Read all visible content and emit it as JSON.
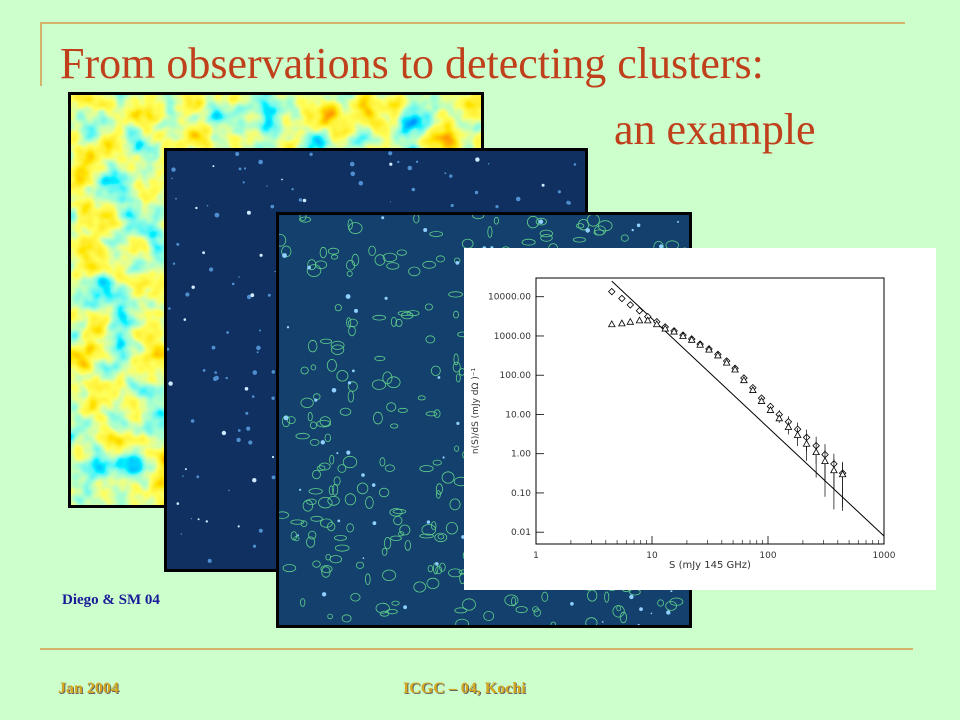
{
  "title": {
    "line1": "From observations to detecting clusters:",
    "line2": "an example"
  },
  "credit": "Diego & SM 04",
  "footer": {
    "date": "Jan 2004",
    "event": "ICGC – 04, Kochi"
  },
  "colors": {
    "background": "#ccffcc",
    "title": "#c0401b",
    "rule": "#d4b46a",
    "footer": "#d4a820",
    "credit": "#1a1a99"
  },
  "panels": [
    {
      "name": "sz-map",
      "colormap": "jet",
      "border": "#000000"
    },
    {
      "name": "filtered-map",
      "colormap": "blue",
      "border": "#000000"
    },
    {
      "name": "detected-sources-map",
      "colormap": "blue-with-green-contours",
      "border": "#000000"
    }
  ],
  "chart_data": {
    "type": "scatter",
    "xlabel": "S  (mJy 145 GHz)",
    "ylabel": "n(S)/dS  (mJy dΩ )⁻¹",
    "xscale": "log",
    "yscale": "log",
    "xlim": [
      1,
      1000
    ],
    "ylim": [
      0.005,
      30000
    ],
    "x_ticks": [
      "1",
      "10",
      "100",
      "1000"
    ],
    "x_tick_values": [
      1,
      10,
      100,
      1000
    ],
    "y_ticks": [
      "10000.00",
      "1000.00",
      "100.00",
      "10.00",
      "1.00",
      "0.10",
      "0.01"
    ],
    "y_tick_values": [
      10000,
      1000,
      100,
      10,
      1,
      0.1,
      0.01
    ],
    "series": [
      {
        "marker": "diamond",
        "x": [
          4.5,
          5.5,
          6.5,
          7.8,
          9.2,
          11,
          13,
          15.5,
          18.5,
          22,
          26,
          31,
          37,
          44,
          52,
          62,
          74,
          88,
          105,
          125,
          150,
          180,
          215,
          260,
          310,
          370,
          440
        ],
        "y": [
          13500,
          9000,
          6200,
          4400,
          3100,
          2300,
          1700,
          1350,
          1050,
          840,
          620,
          470,
          340,
          230,
          150,
          85,
          48,
          26,
          16,
          10,
          6.5,
          4.2,
          2.6,
          1.6,
          0.95,
          0.55,
          0.32
        ],
        "err": [
          0,
          0,
          0,
          0,
          0,
          0,
          0,
          0,
          0,
          0,
          0,
          0,
          0,
          0,
          0,
          0,
          0,
          0,
          0,
          3,
          2.5,
          2,
          1.5,
          1.1,
          0.8,
          0.45,
          0.3
        ]
      },
      {
        "marker": "triangle",
        "x": [
          4.5,
          5.5,
          6.5,
          7.8,
          9.2,
          11,
          13,
          15.5,
          18.5,
          22,
          26,
          31,
          37,
          44,
          52,
          62,
          74,
          88,
          105,
          125,
          150,
          180,
          215,
          260,
          310,
          370,
          440
        ],
        "y": [
          2000,
          2100,
          2300,
          2500,
          2500,
          2000,
          1550,
          1300,
          1000,
          800,
          600,
          450,
          320,
          210,
          140,
          75,
          42,
          22,
          13,
          8,
          4.8,
          3,
          1.8,
          1.1,
          0.65,
          0.38,
          0.3
        ],
        "err": [
          0,
          0,
          0,
          0,
          0,
          0,
          0,
          0,
          0,
          0,
          0,
          0,
          0,
          0,
          0,
          0,
          0,
          0,
          0,
          2,
          1.8,
          1.5,
          1.2,
          0.9,
          0.6,
          0.36,
          0.27
        ]
      }
    ],
    "fit_line": {
      "x": [
        4.5,
        1000
      ],
      "y": [
        25000,
        0.008
      ]
    }
  }
}
